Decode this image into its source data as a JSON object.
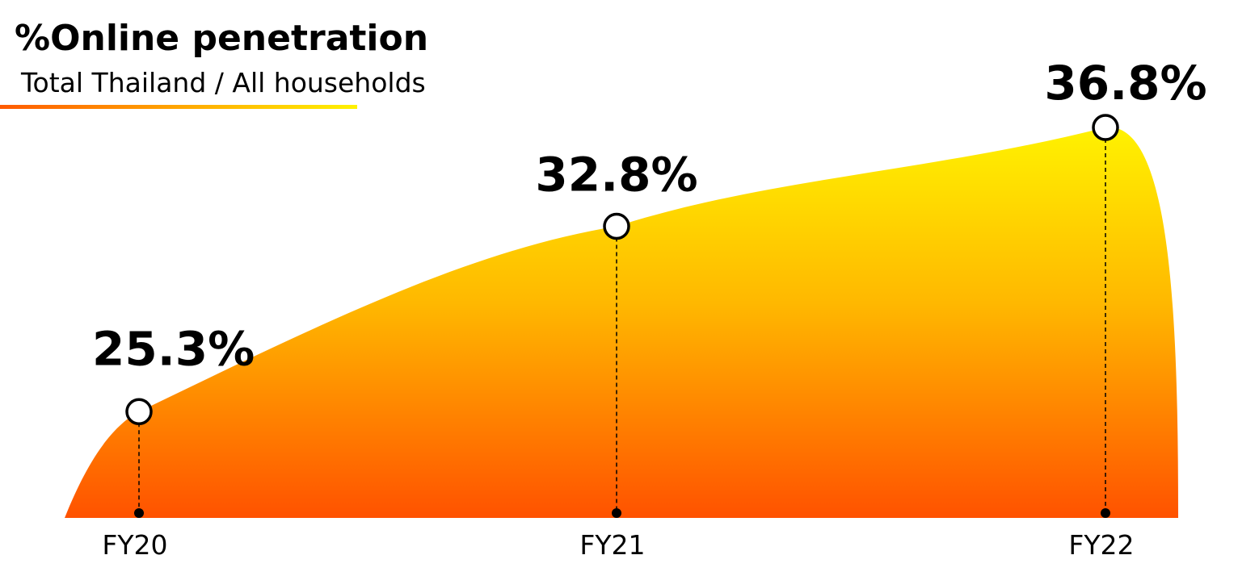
{
  "chart_data": {
    "type": "area",
    "title": "%Online penetration",
    "subtitle": "Total Thailand / All households",
    "categories": [
      "FY20",
      "FY21",
      "FY22"
    ],
    "series": [
      {
        "values": [
          25.3,
          32.8,
          36.8
        ],
        "labels": [
          "25.3%",
          "32.8%",
          "36.8%"
        ]
      }
    ],
    "ylim": [
      21,
      40
    ],
    "grid": false,
    "legend": "none",
    "colors": {
      "fill_top": "#FFF200",
      "fill_mid": "#FFB800",
      "fill_bottom": "#FF5200",
      "underline_start": "#FF5A00",
      "underline_end": "#FFF200",
      "marker_fill": "#FFFFFF",
      "marker_stroke": "#000000",
      "text": "#000000"
    }
  }
}
